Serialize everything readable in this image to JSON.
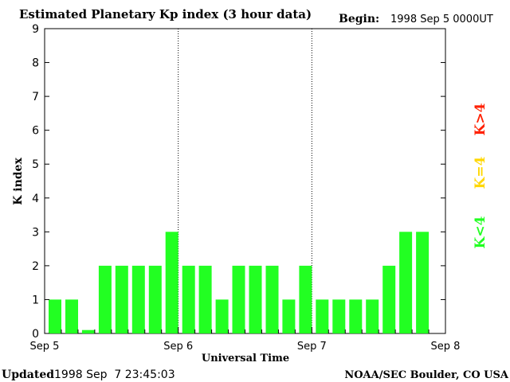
{
  "header": {
    "title": "Estimated Planetary Kp index (3 hour data)",
    "begin_label": "Begin:",
    "begin_value": "1998 Sep 5 0000UT"
  },
  "footer": {
    "updated_label": "Updated",
    "updated_value": "1998 Sep  7 23:45:03",
    "source": "NOAA/SEC Boulder, CO USA"
  },
  "legend": {
    "above": "K>4",
    "equal": "K=4",
    "below": "K<4",
    "colors": {
      "above": "#ff2000",
      "equal": "#ffd700",
      "below": "#22ff22"
    }
  },
  "chart_data": {
    "type": "bar",
    "title": "Estimated Planetary Kp index (3 hour data)",
    "xlabel": "Universal Time",
    "ylabel": "K index",
    "ylim": [
      0,
      9
    ],
    "yticks": [
      "0",
      "1",
      "2",
      "3",
      "4",
      "5",
      "6",
      "7",
      "8",
      "9"
    ],
    "xticks": [
      "Sep 5",
      "Sep 6",
      "Sep 7",
      "Sep 8"
    ],
    "xlim_intervals": 24,
    "grid": "dotted day separators",
    "bar_color": "#22ff22",
    "values": [
      1,
      1,
      0.1,
      2,
      2,
      2,
      2,
      3,
      2,
      2,
      1,
      2,
      2,
      2,
      1,
      2,
      1,
      1,
      1,
      1,
      2,
      3,
      3
    ]
  }
}
